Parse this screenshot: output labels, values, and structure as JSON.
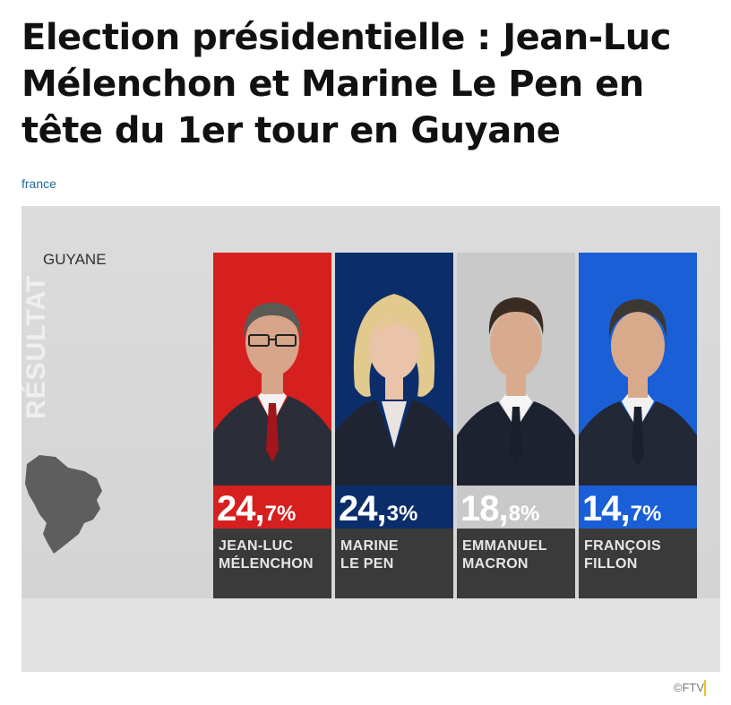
{
  "article": {
    "title": "Election présidentielle : Jean-Luc Mélenchon et Marine Le Pen en tête du 1er tour en Guyane",
    "source": "france",
    "credit": "©FTV"
  },
  "figure": {
    "side_word": "RÉSULTAT",
    "region": "GUYANE",
    "candidates": [
      {
        "pct_main": "24,",
        "pct_small": "7%",
        "name_line1": "JEAN-LUC",
        "name_line2": "MÉLENCHON",
        "color": "#d6201f",
        "suit": "#2b2d38",
        "tie": "#a2151b",
        "hair": "#5c5a55",
        "skin": "#d6a58a"
      },
      {
        "pct_main": "24,",
        "pct_small": "3%",
        "name_line1": "MARINE",
        "name_line2": "LE PEN",
        "color": "#0b2e6b",
        "suit": "#1f2433",
        "tie": "#1f2433",
        "hair": "#e2c98e",
        "skin": "#e9c3aa"
      },
      {
        "pct_main": "18,",
        "pct_small": "8%",
        "name_line1": "EMMANUEL",
        "name_line2": "MACRON",
        "color": "#c9c9c9",
        "suit": "#1d2230",
        "tie": "#1a1f2c",
        "hair": "#3a2c22",
        "skin": "#d9ab8e"
      },
      {
        "pct_main": "14,",
        "pct_small": "7%",
        "name_line1": "FRANÇOIS",
        "name_line2": "FILLON",
        "color": "#1a5fd6",
        "suit": "#232836",
        "tie": "#1b2030",
        "hair": "#3b3733",
        "skin": "#d9a98c"
      }
    ]
  }
}
